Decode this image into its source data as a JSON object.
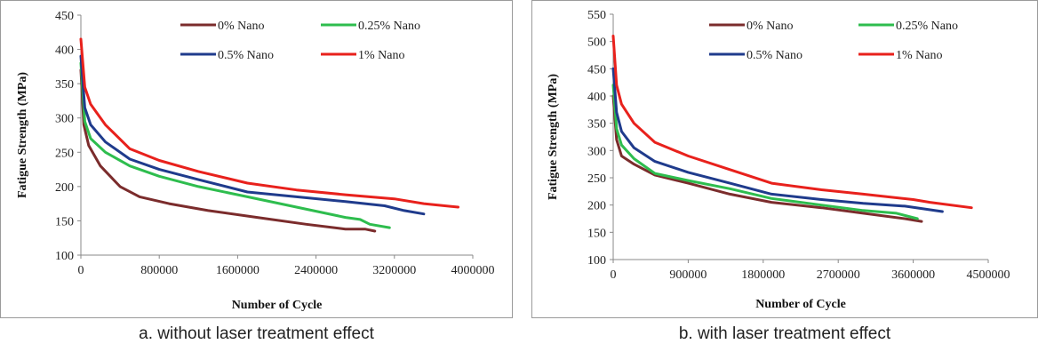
{
  "chart_data": [
    {
      "type": "line",
      "caption": "a. without laser treatment effect",
      "xlabel": "Number of Cycle",
      "ylabel": "Fatigue Strength (MPa)",
      "xlim": [
        0,
        4000000
      ],
      "ylim": [
        100,
        450
      ],
      "xticks": [
        0,
        800000,
        1600000,
        2400000,
        3200000,
        4000000
      ],
      "xtick_labels": [
        "0",
        "800000",
        "1600000",
        "2400000",
        "3200000",
        "4000000"
      ],
      "yticks": [
        100,
        150,
        200,
        250,
        300,
        350,
        400,
        450
      ],
      "ytick_labels": [
        "100",
        "150",
        "200",
        "250",
        "300",
        "350",
        "400",
        "450"
      ],
      "grid": false,
      "series": [
        {
          "name": "0% Nano",
          "color": "#7b2c2c",
          "x": [
            0,
            30000,
            80000,
            200000,
            400000,
            600000,
            900000,
            1300000,
            1800000,
            2300000,
            2700000,
            2900000,
            3000000
          ],
          "y": [
            370,
            290,
            260,
            230,
            200,
            185,
            175,
            165,
            155,
            145,
            138,
            138,
            135
          ]
        },
        {
          "name": "0.25% Nano",
          "color": "#2ebd4e",
          "x": [
            0,
            40000,
            100000,
            250000,
            500000,
            800000,
            1200000,
            1700000,
            2200000,
            2700000,
            2850000,
            2950000,
            3150000
          ],
          "y": [
            380,
            295,
            270,
            250,
            230,
            215,
            200,
            185,
            170,
            155,
            152,
            145,
            140
          ]
        },
        {
          "name": "0.5% Nano",
          "color": "#1f3b8c",
          "x": [
            0,
            40000,
            100000,
            250000,
            500000,
            800000,
            1200000,
            1700000,
            2200000,
            2700000,
            3100000,
            3300000,
            3500000
          ],
          "y": [
            390,
            315,
            290,
            265,
            240,
            225,
            210,
            192,
            185,
            178,
            172,
            165,
            160
          ]
        },
        {
          "name": "1% Nano",
          "color": "#e8211c",
          "x": [
            0,
            40000,
            100000,
            250000,
            500000,
            800000,
            1200000,
            1700000,
            2200000,
            2700000,
            3200000,
            3500000,
            3850000
          ],
          "y": [
            415,
            345,
            320,
            290,
            255,
            238,
            222,
            205,
            195,
            188,
            182,
            175,
            170
          ]
        }
      ],
      "legend": {
        "placement": "top-right"
      }
    },
    {
      "type": "line",
      "caption": "b. with laser treatment effect",
      "xlabel": "Number of Cycle",
      "ylabel": "Fatigue Strength (MPa)",
      "xlim": [
        0,
        4500000
      ],
      "ylim": [
        100,
        550
      ],
      "xticks": [
        0,
        900000,
        1800000,
        2700000,
        3600000,
        4500000
      ],
      "xtick_labels": [
        "0",
        "900000",
        "1800000",
        "2700000",
        "3600000",
        "4500000"
      ],
      "yticks": [
        100,
        150,
        200,
        250,
        300,
        350,
        400,
        450,
        500,
        550
      ],
      "ytick_labels": [
        "100",
        "150",
        "200",
        "250",
        "300",
        "350",
        "400",
        "450",
        "500",
        "550"
      ],
      "grid": false,
      "series": [
        {
          "name": "0% Nano",
          "color": "#7b2c2c",
          "x": [
            0,
            40000,
            100000,
            250000,
            500000,
            900000,
            1400000,
            1900000,
            2500000,
            3000000,
            3500000,
            3700000
          ],
          "y": [
            400,
            320,
            290,
            275,
            255,
            240,
            220,
            205,
            195,
            185,
            175,
            170
          ]
        },
        {
          "name": "0.25% Nano",
          "color": "#2ebd4e",
          "x": [
            0,
            40000,
            100000,
            250000,
            500000,
            900000,
            1400000,
            1900000,
            2500000,
            3000000,
            3400000,
            3650000
          ],
          "y": [
            420,
            340,
            310,
            285,
            258,
            245,
            230,
            212,
            200,
            190,
            185,
            175
          ]
        },
        {
          "name": "0.5% Nano",
          "color": "#1f3b8c",
          "x": [
            0,
            40000,
            100000,
            250000,
            500000,
            900000,
            1400000,
            1900000,
            2500000,
            3000000,
            3500000,
            3950000
          ],
          "y": [
            450,
            370,
            335,
            305,
            280,
            260,
            240,
            220,
            210,
            203,
            198,
            188
          ]
        },
        {
          "name": "1% Nano",
          "color": "#e8211c",
          "x": [
            0,
            40000,
            100000,
            250000,
            500000,
            900000,
            1400000,
            1900000,
            2500000,
            3000000,
            3600000,
            3800000,
            4300000
          ],
          "y": [
            510,
            420,
            385,
            350,
            315,
            290,
            265,
            240,
            228,
            220,
            210,
            205,
            195
          ]
        }
      ],
      "legend": {
        "placement": "top-right"
      }
    }
  ]
}
